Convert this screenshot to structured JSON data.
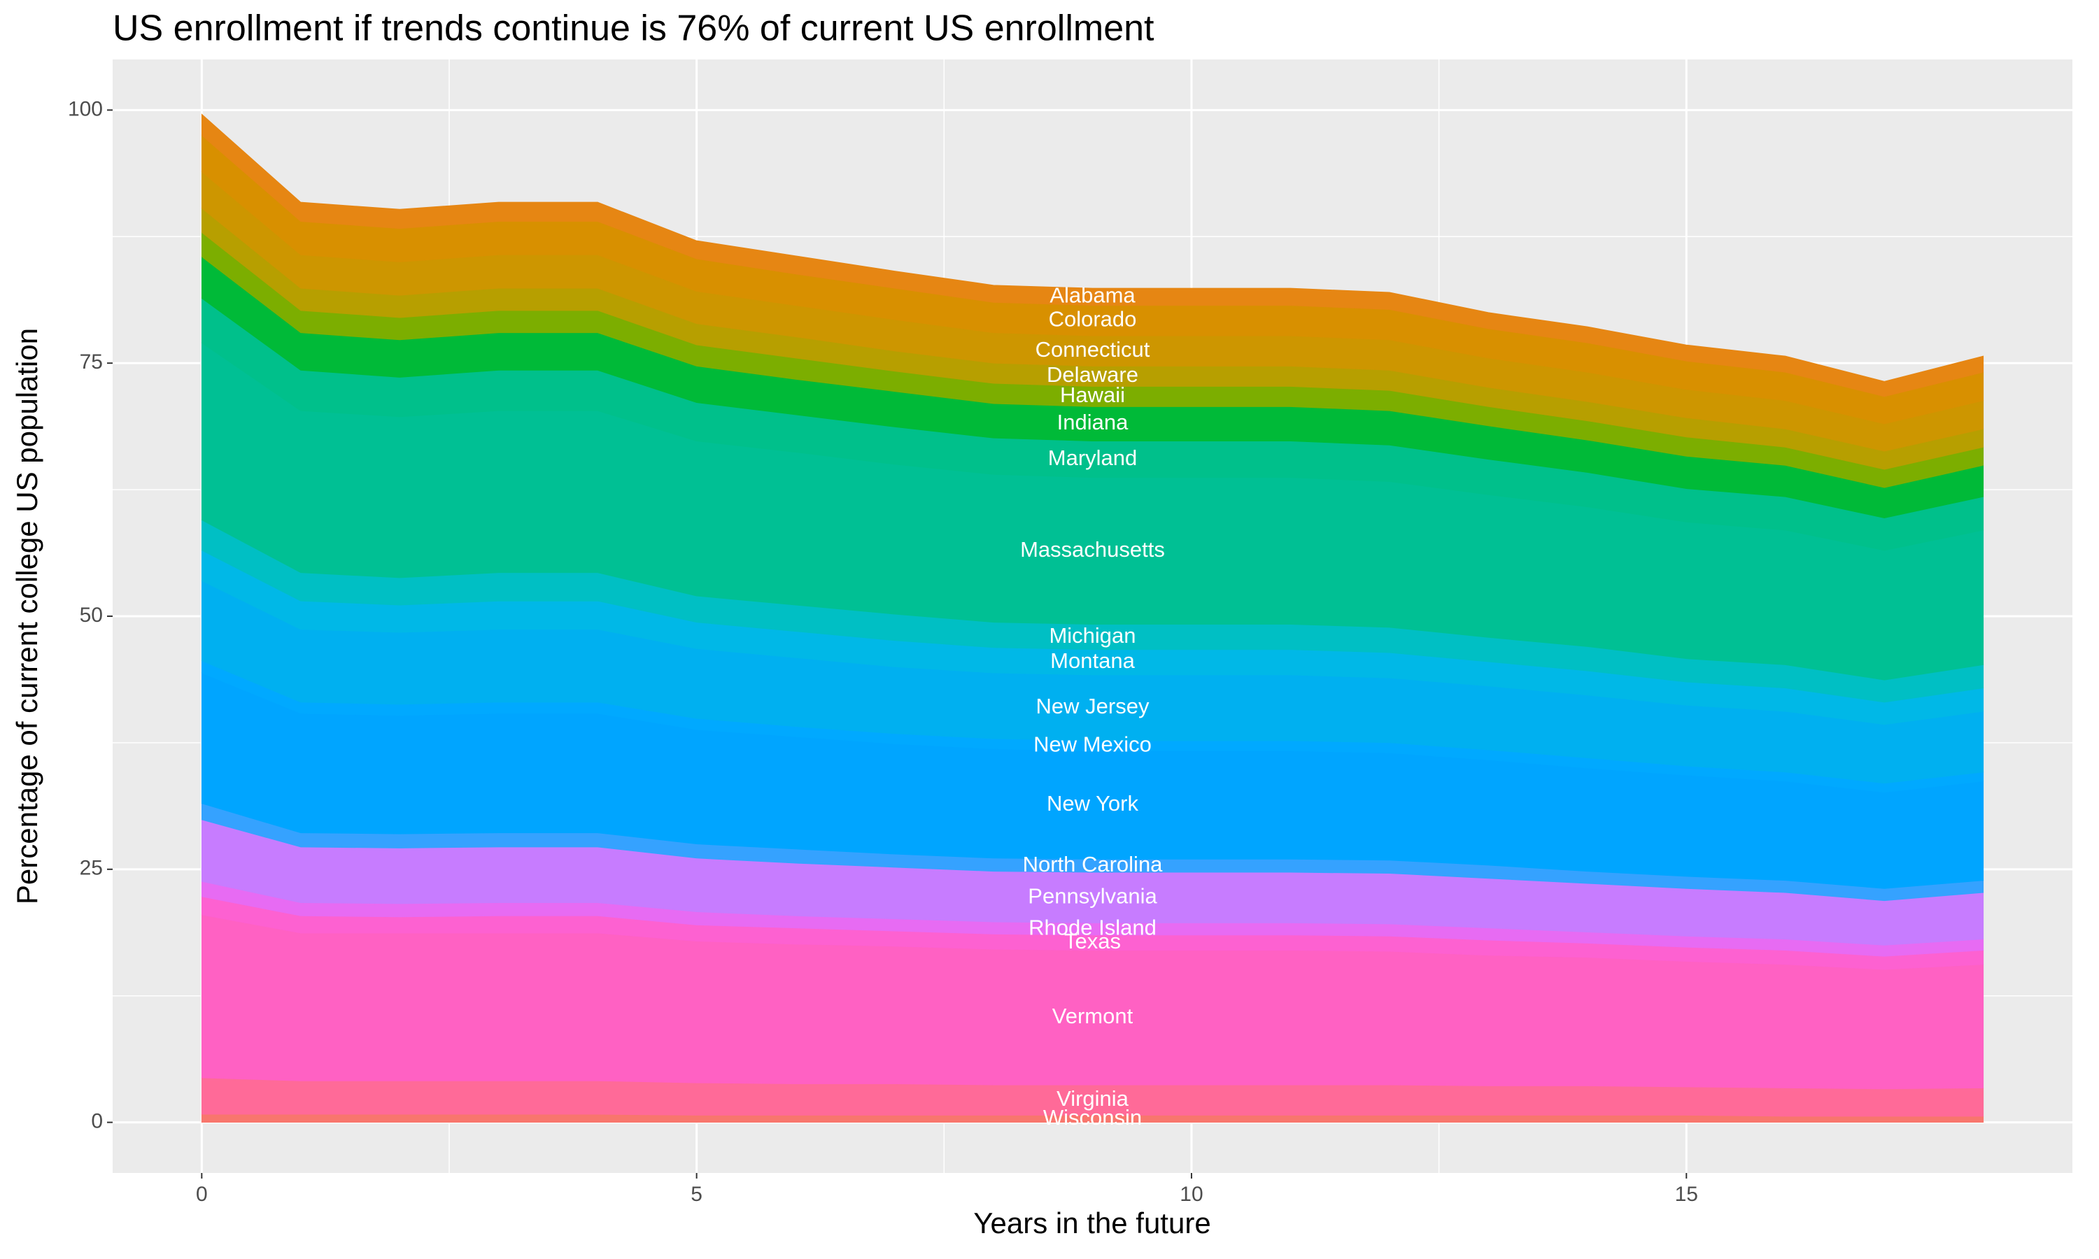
{
  "chart_data": {
    "type": "stacked_area",
    "title": "US enrollment if trends continue is 76% of current US enrollment",
    "x_label": "Years in the future",
    "y_label": "Percentage of current college US population",
    "x": [
      0,
      1,
      2,
      3,
      4,
      5,
      6,
      7,
      8,
      9,
      10,
      11,
      12,
      13,
      14,
      15,
      16,
      17,
      18
    ],
    "xlim": [
      -0.9,
      18.9
    ],
    "xticks": [
      0,
      5,
      10,
      15
    ],
    "ylim": [
      -5,
      105
    ],
    "yticks": [
      0,
      25,
      50,
      75,
      100
    ],
    "grid": true,
    "series_labels": true,
    "series": [
      {
        "name": "Alabama",
        "color": "#e68613",
        "values": [
          2.1,
          1.9,
          1.9,
          1.9,
          1.9,
          1.8,
          1.8,
          1.7,
          1.7,
          1.7,
          1.7,
          1.7,
          1.7,
          1.6,
          1.6,
          1.6,
          1.6,
          1.5,
          1.6
        ]
      },
      {
        "name": "Colorado",
        "color": "#d89000",
        "values": [
          3.6,
          3.3,
          3.3,
          3.3,
          3.3,
          3.2,
          3.1,
          3.1,
          3.0,
          3.0,
          3.0,
          3.0,
          3.0,
          2.9,
          2.9,
          2.8,
          2.8,
          2.7,
          2.8
        ]
      },
      {
        "name": "Connecticut",
        "color": "#cd9600",
        "values": [
          3.6,
          3.3,
          3.3,
          3.3,
          3.3,
          3.2,
          3.1,
          3.1,
          3.0,
          3.0,
          3.0,
          3.0,
          3.0,
          2.9,
          2.9,
          2.8,
          2.8,
          2.7,
          2.8
        ]
      },
      {
        "name": "Delaware",
        "color": "#b79f00",
        "values": [
          2.4,
          2.2,
          2.2,
          2.2,
          2.2,
          2.1,
          2.1,
          2.0,
          2.0,
          2.0,
          2.0,
          2.0,
          2.0,
          1.9,
          1.9,
          1.9,
          1.8,
          1.8,
          1.8
        ]
      },
      {
        "name": "Hawaii",
        "color": "#7cae00",
        "values": [
          2.4,
          2.2,
          2.2,
          2.2,
          2.2,
          2.1,
          2.1,
          2.0,
          2.0,
          2.0,
          2.0,
          2.0,
          2.0,
          1.9,
          1.9,
          1.9,
          1.8,
          1.8,
          1.8
        ]
      },
      {
        "name": "Indiana",
        "color": "#00ba38",
        "values": [
          4.1,
          3.7,
          3.7,
          3.7,
          3.7,
          3.6,
          3.5,
          3.5,
          3.4,
          3.4,
          3.4,
          3.4,
          3.4,
          3.3,
          3.2,
          3.2,
          3.1,
          3.0,
          3.1
        ]
      },
      {
        "name": "Maryland",
        "color": "#00c08b",
        "values": [
          4.4,
          4.0,
          3.9,
          4.0,
          4.0,
          3.8,
          3.7,
          3.7,
          3.6,
          3.6,
          3.6,
          3.6,
          3.6,
          3.5,
          3.4,
          3.3,
          3.3,
          3.2,
          3.3
        ]
      },
      {
        "name": "Massachusetts",
        "color": "#00c094",
        "values": [
          17.5,
          16.0,
          15.9,
          16.0,
          16.0,
          15.3,
          15.1,
          14.8,
          14.6,
          14.5,
          14.5,
          14.5,
          14.4,
          14.1,
          13.8,
          13.5,
          13.3,
          12.8,
          13.3
        ]
      },
      {
        "name": "Michigan",
        "color": "#00bfc4",
        "values": [
          3.0,
          2.8,
          2.7,
          2.8,
          2.8,
          2.6,
          2.6,
          2.6,
          2.5,
          2.5,
          2.5,
          2.5,
          2.5,
          2.4,
          2.4,
          2.3,
          2.3,
          2.2,
          2.3
        ]
      },
      {
        "name": "Montana",
        "color": "#00b8e7",
        "values": [
          3.0,
          2.8,
          2.7,
          2.8,
          2.8,
          2.6,
          2.6,
          2.6,
          2.5,
          2.5,
          2.5,
          2.5,
          2.5,
          2.4,
          2.4,
          2.3,
          2.3,
          2.2,
          2.3
        ]
      },
      {
        "name": "New Jersey",
        "color": "#00b0f0",
        "values": [
          7.9,
          7.2,
          7.1,
          7.2,
          7.2,
          6.9,
          6.8,
          6.6,
          6.5,
          6.5,
          6.5,
          6.5,
          6.4,
          6.3,
          6.2,
          6.0,
          6.0,
          5.8,
          6.0
        ]
      },
      {
        "name": "New Mexico",
        "color": "#00a9ff",
        "values": [
          1.2,
          1.1,
          1.1,
          1.1,
          1.1,
          1.1,
          1.0,
          1.0,
          1.0,
          1.0,
          1.0,
          1.0,
          1.0,
          1.0,
          1.0,
          0.9,
          0.9,
          0.9,
          0.9
        ]
      },
      {
        "name": "New York",
        "color": "#00a5ff",
        "values": [
          12.9,
          11.8,
          11.7,
          11.8,
          11.8,
          11.3,
          11.1,
          10.9,
          10.8,
          10.7,
          10.7,
          10.7,
          10.6,
          10.4,
          10.2,
          10.0,
          9.8,
          9.5,
          9.8
        ]
      },
      {
        "name": "North Carolina",
        "color": "#35a2ff",
        "values": [
          1.6,
          1.4,
          1.4,
          1.4,
          1.4,
          1.4,
          1.4,
          1.3,
          1.3,
          1.3,
          1.3,
          1.3,
          1.3,
          1.3,
          1.2,
          1.2,
          1.2,
          1.2,
          1.2
        ]
      },
      {
        "name": "Pennsylvania",
        "color": "#c77cff",
        "values": [
          6.1,
          5.5,
          5.5,
          5.5,
          5.5,
          5.3,
          5.2,
          5.1,
          5.0,
          5.0,
          5.0,
          5.0,
          5.0,
          4.9,
          4.8,
          4.7,
          4.6,
          4.4,
          4.6
        ]
      },
      {
        "name": "Rhode Island",
        "color": "#e76bf3",
        "values": [
          1.5,
          1.3,
          1.3,
          1.3,
          1.3,
          1.3,
          1.2,
          1.2,
          1.2,
          1.2,
          1.2,
          1.2,
          1.2,
          1.2,
          1.1,
          1.1,
          1.1,
          1.1,
          1.1
        ]
      },
      {
        "name": "Texas",
        "color": "#fd61d1",
        "values": [
          1.8,
          1.7,
          1.6,
          1.7,
          1.7,
          1.6,
          1.6,
          1.5,
          1.5,
          1.5,
          1.5,
          1.5,
          1.5,
          1.5,
          1.4,
          1.4,
          1.4,
          1.3,
          1.4
        ]
      },
      {
        "name": "Vermont",
        "color": "#ff61c3",
        "values": [
          16.1,
          14.6,
          14.6,
          14.6,
          14.6,
          14.0,
          13.8,
          13.6,
          13.4,
          13.3,
          13.3,
          13.3,
          13.2,
          12.9,
          12.7,
          12.4,
          12.2,
          11.8,
          12.2
        ]
      },
      {
        "name": "Virginia",
        "color": "#ff6a98",
        "values": [
          3.6,
          3.3,
          3.3,
          3.3,
          3.3,
          3.2,
          3.1,
          3.1,
          3.0,
          3.0,
          3.0,
          3.0,
          3.0,
          2.9,
          2.9,
          2.8,
          2.8,
          2.7,
          2.8
        ]
      },
      {
        "name": "Wisconsin",
        "color": "#f8766d",
        "values": [
          0.8,
          0.8,
          0.8,
          0.8,
          0.8,
          0.7,
          0.7,
          0.7,
          0.7,
          0.7,
          0.7,
          0.7,
          0.7,
          0.7,
          0.7,
          0.7,
          0.6,
          0.6,
          0.6
        ]
      }
    ]
  }
}
